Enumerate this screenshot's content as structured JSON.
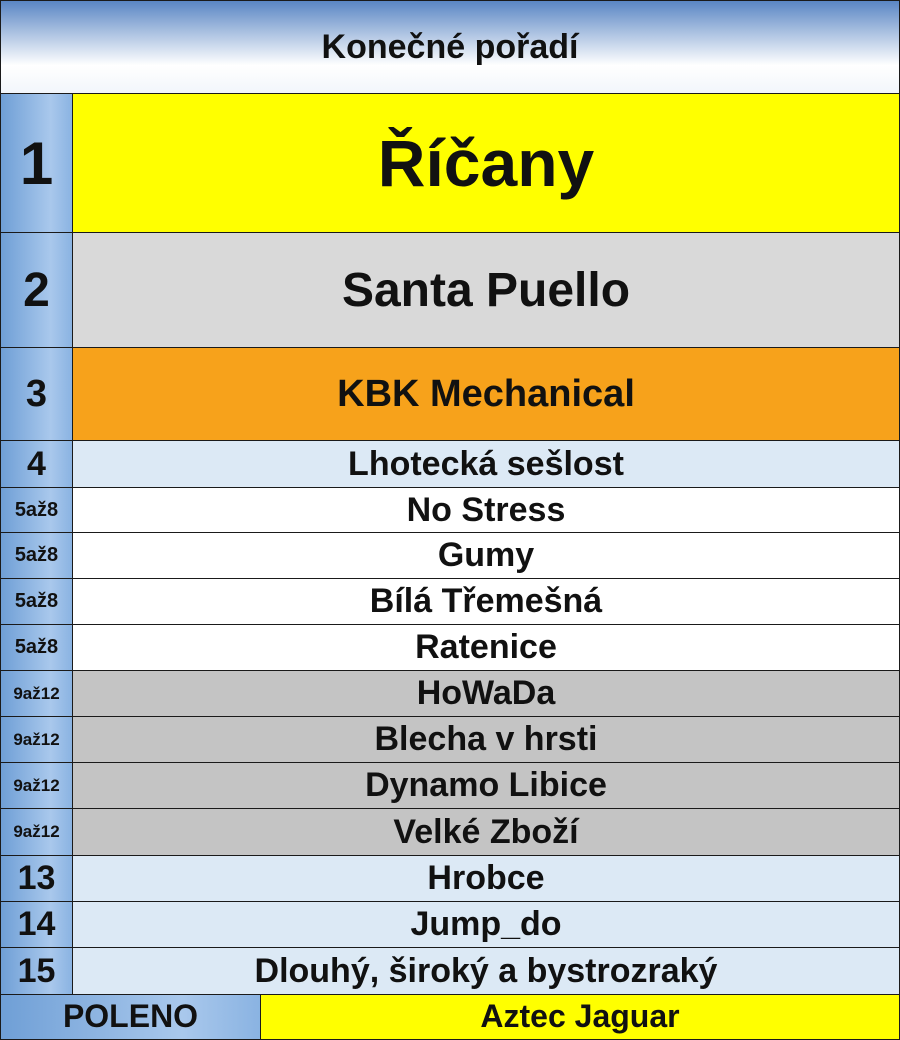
{
  "header": {
    "title": "Konečné pořadí"
  },
  "rows": [
    {
      "rank": "1",
      "name": "Říčany"
    },
    {
      "rank": "2",
      "name": "Santa Puello"
    },
    {
      "rank": "3",
      "name": "KBK Mechanical"
    },
    {
      "rank": "4",
      "name": "Lhotecká sešlost"
    },
    {
      "rank": "5až8",
      "name": "No Stress"
    },
    {
      "rank": "5až8",
      "name": "Gumy"
    },
    {
      "rank": "5až8",
      "name": "Bílá Třemešná"
    },
    {
      "rank": "5až8",
      "name": "Ratenice"
    },
    {
      "rank": "9až12",
      "name": "HoWaDa"
    },
    {
      "rank": "9až12",
      "name": "Blecha v hrsti"
    },
    {
      "rank": "9až12",
      "name": "Dynamo Libice"
    },
    {
      "rank": "9až12",
      "name": "Velké Zboží"
    },
    {
      "rank": "13",
      "name": "Hrobce"
    },
    {
      "rank": "14",
      "name": "Jump_do"
    },
    {
      "rank": "15",
      "name": "Dlouhý, široký a bystrozraký"
    }
  ],
  "footer": {
    "label": "POLENO",
    "value": "Aztec Jaguar"
  }
}
